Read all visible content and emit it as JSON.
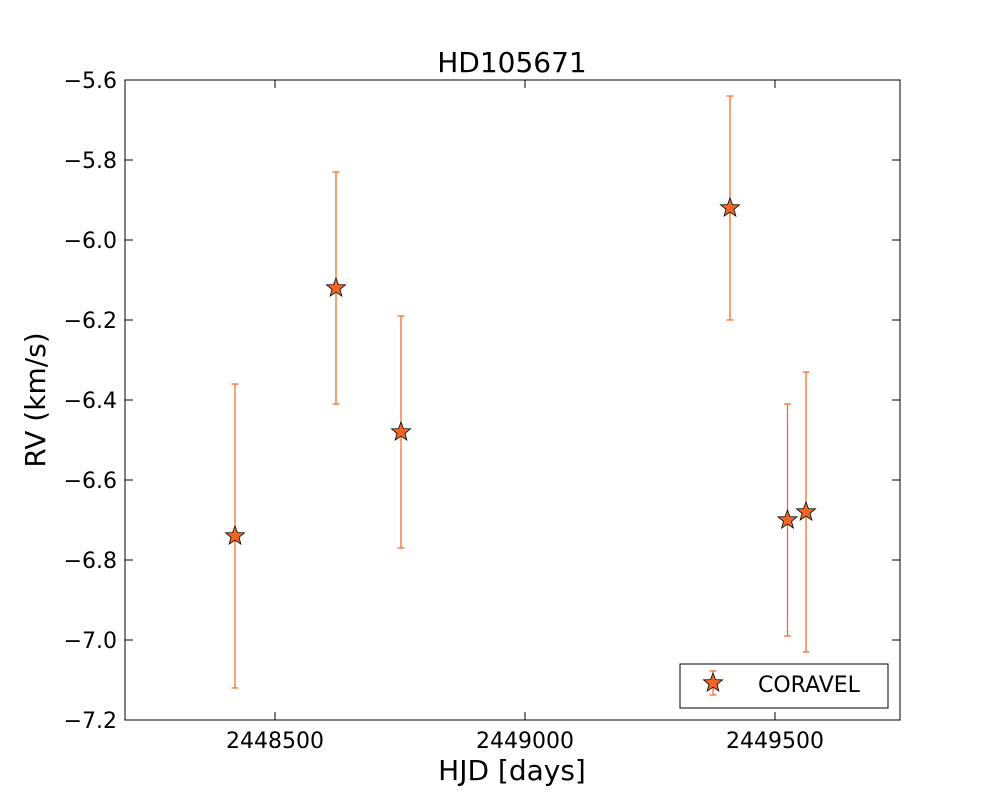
{
  "chart_data": {
    "type": "scatter",
    "title": "HD105671",
    "xlabel": "HJD [days]",
    "ylabel": "RV (km/s)",
    "xlim": [
      2448200,
      2449750
    ],
    "ylim": [
      -7.2,
      -5.6
    ],
    "xticks": [
      2448500,
      2449000,
      2449500
    ],
    "yticks": [
      -5.6,
      -5.8,
      -6.0,
      -6.2,
      -6.4,
      -6.6,
      -6.8,
      -7.0,
      -7.2
    ],
    "xtick_labels": [
      "2448500",
      "2449000",
      "2449500"
    ],
    "ytick_labels": [
      "−5.6",
      "−5.8",
      "−6.0",
      "−6.2",
      "−6.4",
      "−6.6",
      "−6.8",
      "−7.0",
      "−7.2"
    ],
    "grid": false,
    "legend_position": "lower-right",
    "series": [
      {
        "name": "CORAVEL",
        "marker": "star",
        "color": "#f26522",
        "errorbar_color": "#f26522",
        "x": [
          2448420,
          2448622,
          2448752,
          2449410,
          2449525,
          2449562
        ],
        "y": [
          -6.74,
          -6.12,
          -6.48,
          -5.92,
          -6.7,
          -6.68
        ],
        "yerr": [
          0.38,
          0.29,
          0.29,
          0.28,
          0.29,
          0.35
        ]
      }
    ]
  }
}
